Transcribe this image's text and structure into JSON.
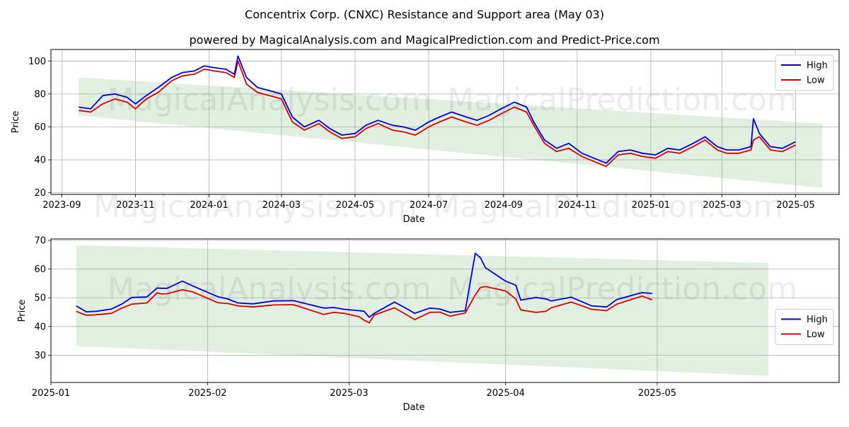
{
  "title": "Concentrix Corp. (CNXC) Resistance and Support area (May 03)",
  "subtitle": "powered by MagicalAnalysis.com and MagicalPrediction.com and Predict-Price.com",
  "watermarks": [
    "MagicalAnalysis.com",
    "MagicalPrediction.com"
  ],
  "colors": {
    "high": "#0000dd",
    "low": "#dd0000",
    "band": "#d6ead6",
    "grid": "#b0b0b0"
  },
  "chart_data": [
    {
      "type": "line",
      "xlabel": "Date",
      "ylabel": "Price",
      "ylim": [
        19,
        107
      ],
      "xlim": [
        "2023-08-23",
        "2025-06-06"
      ],
      "xticks": [
        "2023-09",
        "2023-11",
        "2024-01",
        "2024-03",
        "2024-05",
        "2024-07",
        "2024-09",
        "2024-11",
        "2025-01",
        "2025-03",
        "2025-05"
      ],
      "yticks": [
        20,
        40,
        60,
        80,
        100
      ],
      "grid": true,
      "legend": "top-right",
      "band": {
        "x": [
          "2023-09-15",
          "2025-05-23"
        ],
        "upper": [
          90,
          62
        ],
        "lower": [
          67,
          23
        ]
      },
      "x": [
        "2023-09-15",
        "2023-09-25",
        "2023-10-05",
        "2023-10-15",
        "2023-10-25",
        "2023-11-01",
        "2023-11-10",
        "2023-11-20",
        "2023-12-01",
        "2023-12-10",
        "2023-12-20",
        "2023-12-28",
        "2024-01-05",
        "2024-01-15",
        "2024-01-22",
        "2024-01-25",
        "2024-02-01",
        "2024-02-10",
        "2024-02-20",
        "2024-03-01",
        "2024-03-10",
        "2024-03-20",
        "2024-04-01",
        "2024-04-10",
        "2024-04-20",
        "2024-05-01",
        "2024-05-10",
        "2024-05-20",
        "2024-06-01",
        "2024-06-10",
        "2024-06-20",
        "2024-07-01",
        "2024-07-10",
        "2024-07-20",
        "2024-08-01",
        "2024-08-10",
        "2024-08-20",
        "2024-08-30",
        "2024-09-10",
        "2024-09-20",
        "2024-09-26",
        "2024-10-05",
        "2024-10-15",
        "2024-10-25",
        "2024-11-05",
        "2024-11-15",
        "2024-11-25",
        "2024-12-05",
        "2024-12-15",
        "2024-12-25",
        "2025-01-05",
        "2025-01-15",
        "2025-01-25",
        "2025-02-05",
        "2025-02-15",
        "2025-02-25",
        "2025-03-05",
        "2025-03-15",
        "2025-03-25",
        "2025-03-27",
        "2025-04-01",
        "2025-04-10",
        "2025-04-20",
        "2025-05-01"
      ],
      "series": [
        {
          "name": "High",
          "values": [
            72,
            71,
            79,
            80,
            78,
            74,
            79,
            84,
            90,
            93,
            94,
            97,
            96,
            95,
            92,
            103,
            90,
            84,
            82,
            80,
            66,
            60,
            64,
            59,
            55,
            56,
            61,
            64,
            61,
            60,
            58,
            63,
            66,
            69,
            66,
            64,
            67,
            71,
            75,
            72,
            63,
            52,
            47,
            50,
            44,
            41,
            38,
            45,
            46,
            44,
            43,
            47,
            46,
            50,
            54,
            48,
            46,
            46,
            48,
            65,
            56,
            48,
            47,
            51
          ]
        },
        {
          "name": "Low",
          "values": [
            70,
            69,
            74,
            77,
            75,
            71,
            77,
            81,
            88,
            91,
            92,
            95,
            94,
            93,
            90,
            100,
            86,
            81,
            79,
            77,
            63,
            58,
            62,
            57,
            53,
            54,
            59,
            62,
            58,
            57,
            55,
            60,
            63,
            66,
            63,
            61,
            64,
            68,
            72,
            69,
            61,
            50,
            45,
            47,
            42,
            39,
            36,
            43,
            44,
            42,
            41,
            45,
            44,
            48,
            52,
            46,
            44,
            44,
            46,
            52,
            54,
            46,
            45,
            49
          ]
        }
      ]
    },
    {
      "type": "line",
      "xlabel": "Date",
      "ylabel": "Price",
      "ylim": [
        20.5,
        70.5
      ],
      "xlim": [
        "2025-01-01",
        "2025-06-06"
      ],
      "xticks": [
        "2025-01",
        "2025-02",
        "2025-03",
        "2025-04",
        "2025-05"
      ],
      "yticks": [
        30,
        40,
        50,
        60,
        70
      ],
      "grid": true,
      "legend": "center-right",
      "band": {
        "x": [
          "2025-01-06",
          "2025-05-23"
        ],
        "upper": [
          68.3,
          62.1
        ],
        "lower": [
          33.2,
          22.8
        ]
      },
      "x": [
        "2025-01-06",
        "2025-01-08",
        "2025-01-10",
        "2025-01-13",
        "2025-01-15",
        "2025-01-17",
        "2025-01-20",
        "2025-01-22",
        "2025-01-23",
        "2025-01-24",
        "2025-01-27",
        "2025-01-29",
        "2025-02-03",
        "2025-02-05",
        "2025-02-07",
        "2025-02-10",
        "2025-02-14",
        "2025-02-18",
        "2025-02-24",
        "2025-02-26",
        "2025-02-28",
        "2025-03-03",
        "2025-03-04",
        "2025-03-05",
        "2025-03-06",
        "2025-03-10",
        "2025-03-12",
        "2025-03-14",
        "2025-03-17",
        "2025-03-19",
        "2025-03-21",
        "2025-03-24",
        "2025-03-26",
        "2025-03-27",
        "2025-03-28",
        "2025-04-01",
        "2025-04-03",
        "2025-04-04",
        "2025-04-07",
        "2025-04-09",
        "2025-04-10",
        "2025-04-14",
        "2025-04-18",
        "2025-04-21",
        "2025-04-23",
        "2025-04-28",
        "2025-04-30"
      ],
      "series": [
        {
          "name": "High",
          "values": [
            47.2,
            45.1,
            45.3,
            46.1,
            47.8,
            50.1,
            50.3,
            53.4,
            53.3,
            53.3,
            55.8,
            54.2,
            50.4,
            49.6,
            48.2,
            47.9,
            48.9,
            49.0,
            46.4,
            46.6,
            46.0,
            45.5,
            45.3,
            43.2,
            44.6,
            48.5,
            46.6,
            44.6,
            46.4,
            46.1,
            44.9,
            45.5,
            65.5,
            64.0,
            60.5,
            55.8,
            54.4,
            49.2,
            50.1,
            49.6,
            48.9,
            50.2,
            47.2,
            46.8,
            49.4,
            51.8,
            51.5
          ]
        },
        {
          "name": "Low",
          "values": [
            45.3,
            43.9,
            44.1,
            44.6,
            46.4,
            47.8,
            48.2,
            51.7,
            51.3,
            51.4,
            52.8,
            52.1,
            48.3,
            48.0,
            47.2,
            46.8,
            47.5,
            47.6,
            44.2,
            44.9,
            44.6,
            43.4,
            42.2,
            41.3,
            44.0,
            46.5,
            44.5,
            42.4,
            44.9,
            45.0,
            43.6,
            44.7,
            51.0,
            53.6,
            53.9,
            52.4,
            49.6,
            45.8,
            44.9,
            45.3,
            46.5,
            48.5,
            46.0,
            45.5,
            47.8,
            50.6,
            49.3
          ]
        }
      ]
    }
  ]
}
